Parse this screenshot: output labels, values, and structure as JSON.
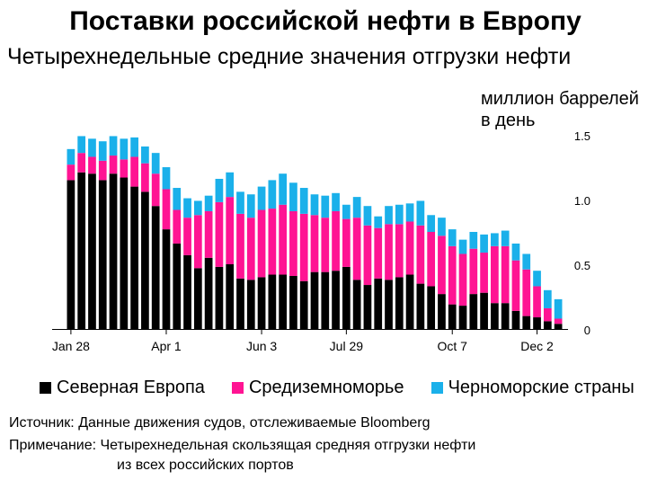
{
  "title": "Поставки российской нефти в Европу",
  "subtitle": "Четырехнедельные средние значения отгрузки нефти",
  "unit_label": "миллион баррелей\nв день",
  "source": "Источник: Данные движения судов, отслеживаемые Bloomberg",
  "note_line1": "Примечание: Четырехнедельная скользящая средняя отгрузки нефти",
  "note_line2": "из всех российских портов",
  "colors": {
    "northern_europe": "#000000",
    "mediterranean": "#ff1493",
    "black_sea": "#1ab0ea",
    "axis": "#000000",
    "grid": "#cccccc"
  },
  "chart_data": {
    "type": "bar",
    "stacked": true,
    "ylim": [
      0,
      1.5
    ],
    "yticks": [
      0,
      0.5,
      1.0,
      1.5
    ],
    "ytick_labels": [
      "0",
      "0.5",
      "1.0",
      "1.5"
    ],
    "xtick_labels": [
      {
        "label": "Jan 28",
        "index": 0
      },
      {
        "label": "Apr 1",
        "index": 9
      },
      {
        "label": "Jun 3",
        "index": 18
      },
      {
        "label": "Jul 29",
        "index": 26
      },
      {
        "label": "Oct 7",
        "index": 36
      },
      {
        "label": "Dec 2",
        "index": 44
      }
    ],
    "legend_position": "bottom",
    "series": [
      {
        "name": "Северная Европа",
        "values": [
          1.15,
          1.21,
          1.2,
          1.15,
          1.2,
          1.17,
          1.1,
          1.06,
          0.95,
          0.77,
          0.66,
          0.57,
          0.47,
          0.55,
          0.48,
          0.5,
          0.39,
          0.38,
          0.4,
          0.42,
          0.42,
          0.41,
          0.37,
          0.44,
          0.44,
          0.45,
          0.48,
          0.38,
          0.34,
          0.39,
          0.38,
          0.4,
          0.42,
          0.35,
          0.33,
          0.27,
          0.19,
          0.18,
          0.27,
          0.28,
          0.2,
          0.2,
          0.14,
          0.1,
          0.09,
          0.06,
          0.04
        ]
      },
      {
        "name": "Средиземноморье",
        "values": [
          0.12,
          0.15,
          0.13,
          0.15,
          0.14,
          0.14,
          0.23,
          0.22,
          0.25,
          0.31,
          0.26,
          0.29,
          0.41,
          0.36,
          0.5,
          0.52,
          0.5,
          0.48,
          0.52,
          0.51,
          0.54,
          0.5,
          0.52,
          0.44,
          0.42,
          0.46,
          0.37,
          0.48,
          0.46,
          0.39,
          0.43,
          0.41,
          0.41,
          0.45,
          0.42,
          0.45,
          0.45,
          0.4,
          0.35,
          0.31,
          0.44,
          0.44,
          0.39,
          0.36,
          0.24,
          0.1,
          0.04
        ]
      },
      {
        "name": "Черноморские страны",
        "values": [
          0.12,
          0.13,
          0.14,
          0.15,
          0.15,
          0.16,
          0.15,
          0.13,
          0.16,
          0.17,
          0.17,
          0.15,
          0.11,
          0.12,
          0.18,
          0.19,
          0.17,
          0.18,
          0.18,
          0.22,
          0.24,
          0.22,
          0.2,
          0.16,
          0.17,
          0.14,
          0.11,
          0.16,
          0.15,
          0.09,
          0.14,
          0.15,
          0.14,
          0.19,
          0.13,
          0.14,
          0.13,
          0.11,
          0.13,
          0.14,
          0.1,
          0.12,
          0.13,
          0.12,
          0.12,
          0.14,
          0.15
        ]
      }
    ]
  }
}
